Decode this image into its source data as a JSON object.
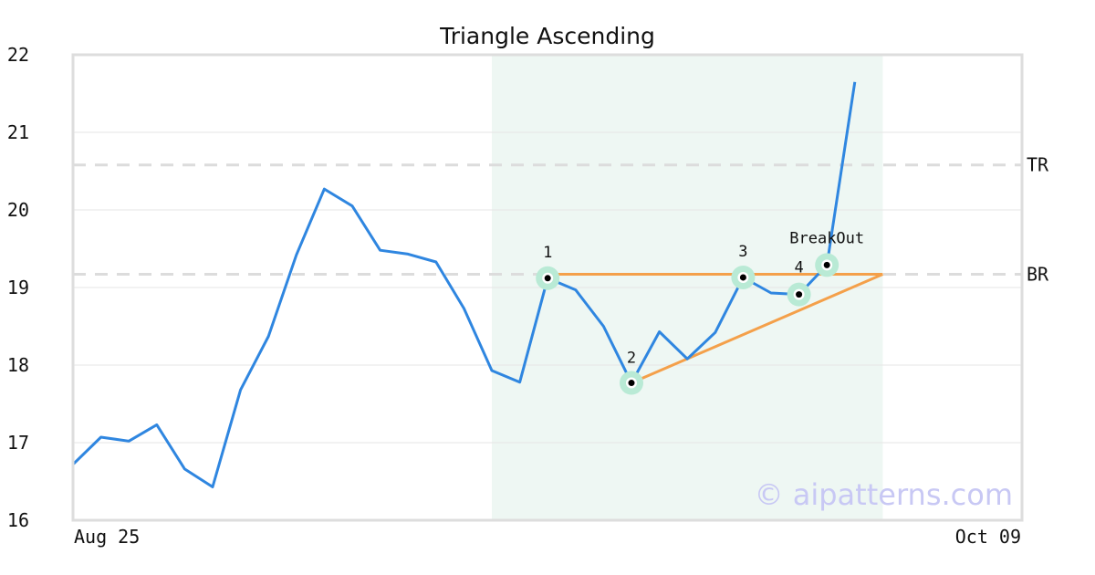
{
  "chart_data": {
    "type": "line",
    "title": "Triangle Ascending",
    "xlabel": "",
    "ylabel": "",
    "ylim": [
      16,
      22
    ],
    "y_ticks": [
      "16",
      "17",
      "18",
      "19",
      "20",
      "21",
      "22"
    ],
    "x_tick_labels": [
      "Aug 25",
      "Oct 09"
    ],
    "grid": true,
    "series": [
      {
        "color": "#2f86e0",
        "values": [
          16.72,
          17.07,
          17.02,
          17.23,
          16.66,
          16.43,
          17.68,
          18.37,
          19.42,
          20.27,
          20.05,
          19.48,
          19.43,
          19.33,
          18.73,
          17.93,
          17.78,
          19.12,
          18.97,
          18.5,
          17.77,
          18.43,
          18.08,
          18.42,
          19.13,
          18.93,
          18.91,
          19.29,
          21.65
        ]
      }
    ],
    "highlight_region": {
      "start_index": 15,
      "end_index": 28,
      "color": "#eef7f3"
    },
    "reference_lines": [
      {
        "label": "TR",
        "value": 20.58,
        "color": "#dcdcdc"
      },
      {
        "label": "BR",
        "value": 19.17,
        "color": "#dcdcdc"
      }
    ],
    "pattern_points": [
      {
        "label": "1",
        "index": 17,
        "value": 19.12
      },
      {
        "label": "2",
        "index": 20,
        "value": 17.77
      },
      {
        "label": "3",
        "index": 24,
        "value": 19.13
      },
      {
        "label": "4",
        "index": 26,
        "value": 18.91
      },
      {
        "label": "BreakOut",
        "index": 27,
        "value": 19.29
      }
    ],
    "trend_lines": {
      "color": "#f4a04a",
      "resistance": {
        "from_index": 17,
        "to_index": 29,
        "value": 19.17
      },
      "support": {
        "from_index": 20,
        "from_value": 17.77,
        "to_index": 29,
        "to_value": 19.17
      }
    },
    "watermark": "© aipatterns.com"
  }
}
